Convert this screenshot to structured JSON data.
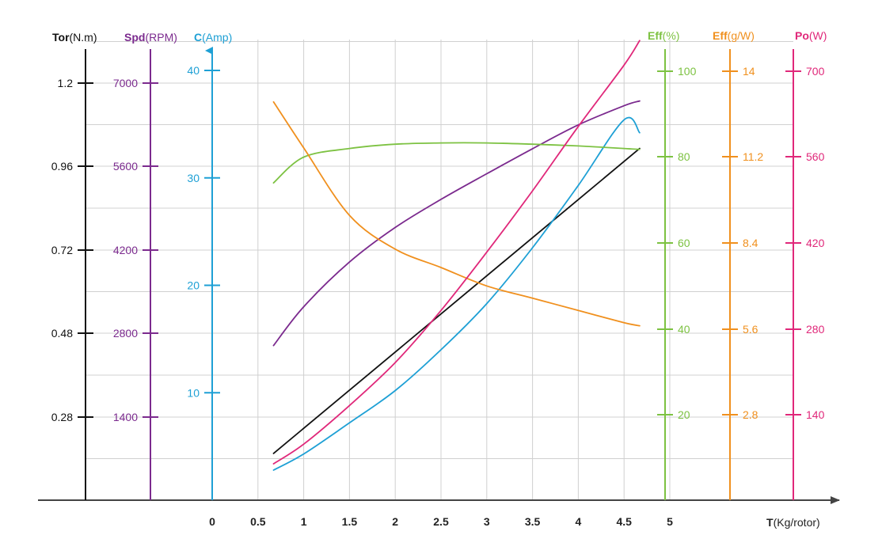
{
  "colors": {
    "torque": "#111111",
    "speed": "#7b2a8e",
    "current": "#1ea0d5",
    "eff_pct": "#7dc242",
    "eff_gw": "#f0901e",
    "power": "#e0287a",
    "grid": "#d0d0d0",
    "xaxis": "#444444"
  },
  "axis_titles": {
    "tor_bold": "Tor",
    "tor_unit": "(N.m)",
    "spd_bold": "Spd",
    "spd_unit": "(RPM)",
    "c_bold": "C",
    "c_unit": "(Amp)",
    "effpct_bold": "Eff",
    "effpct_unit": "(%)",
    "effgw_bold": "Eff",
    "effgw_unit": "(g/W)",
    "po_bold": "Po",
    "po_unit": "(W)",
    "x_bold": "T",
    "x_unit": "(Kg/rotor)"
  },
  "chart_data": {
    "type": "line",
    "x_label": "T(Kg/rotor)",
    "x_ticks": [
      "0",
      "0.5",
      "1",
      "1.5",
      "2",
      "2.5",
      "3",
      "3.5",
      "4",
      "4.5",
      "5"
    ],
    "xlim": [
      0,
      5
    ],
    "axes": [
      {
        "id": "tor",
        "label": "Tor(N.m)",
        "ticks": [
          "0.28",
          "0.48",
          "0.72",
          "0.96",
          "1.2"
        ]
      },
      {
        "id": "spd",
        "label": "Spd(RPM)",
        "ticks": [
          "1400",
          "2800",
          "4200",
          "5600",
          "7000"
        ]
      },
      {
        "id": "cur",
        "label": "C(Amp)",
        "ticks": [
          "10",
          "20",
          "30",
          "40"
        ],
        "ylim": [
          0,
          40
        ]
      },
      {
        "id": "effpct",
        "label": "Eff(%)",
        "ticks": [
          "20",
          "40",
          "60",
          "80",
          "100"
        ]
      },
      {
        "id": "effgw",
        "label": "Eff(g/W)",
        "ticks": [
          "2.8",
          "5.6",
          "8.4",
          "11.2",
          "14"
        ]
      },
      {
        "id": "po",
        "label": "Po(W)",
        "ticks": [
          "140",
          "280",
          "420",
          "560",
          "700"
        ]
      }
    ],
    "series": [
      {
        "name": "Tor(N.m)",
        "axis": "tor",
        "color_key": "torque",
        "x": [
          0.67,
          4.67
        ],
        "y": [
          0.18,
          1.02
        ]
      },
      {
        "name": "Spd(RPM)",
        "axis": "spd",
        "color_key": "speed",
        "x": [
          0.67,
          1.0,
          1.5,
          2.0,
          2.5,
          3.0,
          3.5,
          4.0,
          4.5,
          4.67
        ],
        "y": [
          2600,
          3250,
          4000,
          4580,
          5050,
          5480,
          5900,
          6300,
          6620,
          6700
        ]
      },
      {
        "name": "C(Amp)",
        "axis": "cur",
        "color_key": "current",
        "x": [
          0.67,
          1.0,
          1.5,
          2.0,
          2.5,
          3.0,
          3.5,
          4.0,
          4.5,
          4.67
        ],
        "y": [
          2.8,
          4.3,
          7.2,
          10.2,
          14.0,
          18.3,
          23.5,
          29.3,
          35.4,
          34.2
        ]
      },
      {
        "name": "Eff(%)",
        "axis": "effpct",
        "color_key": "eff_pct",
        "x": [
          0.67,
          1.0,
          1.5,
          2.0,
          2.5,
          3.0,
          3.5,
          4.0,
          4.5,
          4.67
        ],
        "y": [
          74,
          80,
          82,
          83,
          83.3,
          83.3,
          83.0,
          82.6,
          82.0,
          81.8
        ]
      },
      {
        "name": "Eff(g/W)",
        "axis": "effgw",
        "color_key": "eff_gw",
        "x": [
          0.67,
          1.0,
          1.5,
          2.0,
          2.5,
          3.0,
          3.5,
          4.0,
          4.5,
          4.67
        ],
        "y": [
          13.0,
          11.5,
          9.3,
          8.2,
          7.6,
          7.0,
          6.6,
          6.2,
          5.8,
          5.7
        ]
      },
      {
        "name": "Po(W)",
        "axis": "po",
        "color_key": "power",
        "x": [
          0.67,
          1.0,
          1.5,
          2.0,
          2.5,
          3.0,
          3.5,
          4.0,
          4.5,
          4.67
        ],
        "y": [
          60,
          92,
          155,
          225,
          310,
          405,
          505,
          610,
          710,
          750
        ]
      }
    ]
  }
}
